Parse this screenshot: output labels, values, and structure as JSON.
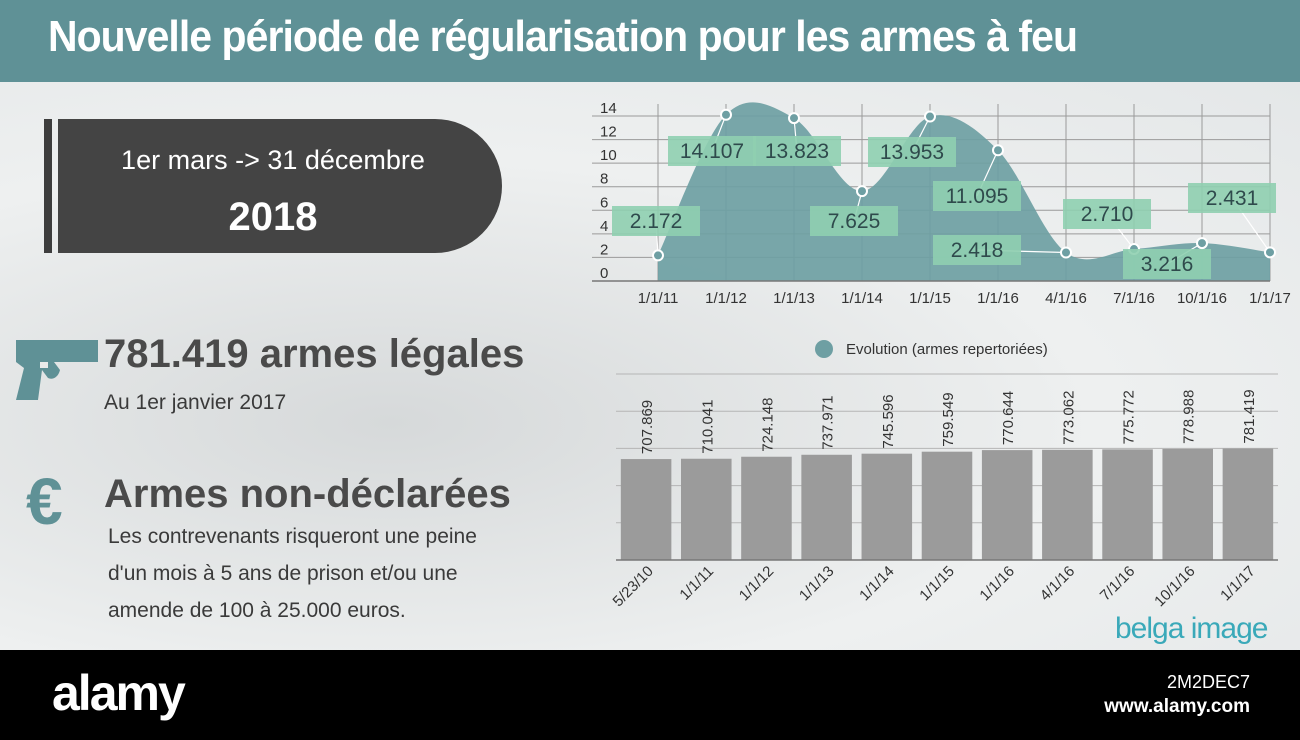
{
  "header": {
    "title": "Nouvelle période de régularisation pour les armes à feu"
  },
  "period": {
    "range": "1er mars -> 31 décembre",
    "year": "2018"
  },
  "legal": {
    "headline": "781.419 armes légales",
    "sub": "Au 1er janvier 2017",
    "icon": "pistol-icon"
  },
  "undeclared": {
    "headline": "Armes non-déclarées",
    "icon": "euro-icon",
    "lines": [
      "Les contrevenants risqueront une peine",
      "d'un mois à 5 ans de prison et/ou une",
      "amende de 100 à 25.000 euros."
    ]
  },
  "watermarks": {
    "brand": "belga image"
  },
  "footer": {
    "logo": "alamy",
    "image_id": "2M2DEC7",
    "url": "www.alamy.com"
  },
  "colors": {
    "header": "#5f9196",
    "area": "#6e9fa3",
    "label_box": "#8fcfb0",
    "bar": "#9b9b9b",
    "dark_box": "#444444"
  },
  "chart_data": [
    {
      "type": "area",
      "x": [
        "1/1/11",
        "1/1/12",
        "1/1/13",
        "1/1/14",
        "1/1/15",
        "1/1/16",
        "4/1/16",
        "7/1/16",
        "10/1/16",
        "1/1/17"
      ],
      "values": [
        2.172,
        14.107,
        13.823,
        7.625,
        13.953,
        11.095,
        2.418,
        2.71,
        3.216,
        2.431
      ],
      "point_labels": [
        "2.172",
        "14.107",
        "13.823",
        "7.625",
        "13.953",
        "11.095",
        "2.418",
        "2.710",
        "3.216",
        "2.431"
      ],
      "y_ticks": [
        "0",
        "2",
        "4",
        "6",
        "8",
        "10",
        "12",
        "14"
      ],
      "ylim": [
        0,
        14
      ],
      "grid": true
    },
    {
      "type": "bar",
      "legend": "Evolution (armes repertoriées)",
      "legend_position": "top",
      "categories": [
        "5/23/10",
        "1/1/11",
        "1/1/12",
        "1/1/13",
        "1/1/14",
        "1/1/15",
        "1/1/16",
        "4/1/16",
        "7/1/16",
        "10/1/16",
        "1/1/17"
      ],
      "values": [
        707869,
        710041,
        724148,
        737971,
        745596,
        759549,
        770644,
        773062,
        775772,
        778988,
        781419
      ],
      "value_labels": [
        "707.869",
        "710.041",
        "724.148",
        "737.971",
        "745.596",
        "759.549",
        "770.644",
        "773.062",
        "775.772",
        "778.988",
        "781.419"
      ],
      "grid": true
    }
  ]
}
